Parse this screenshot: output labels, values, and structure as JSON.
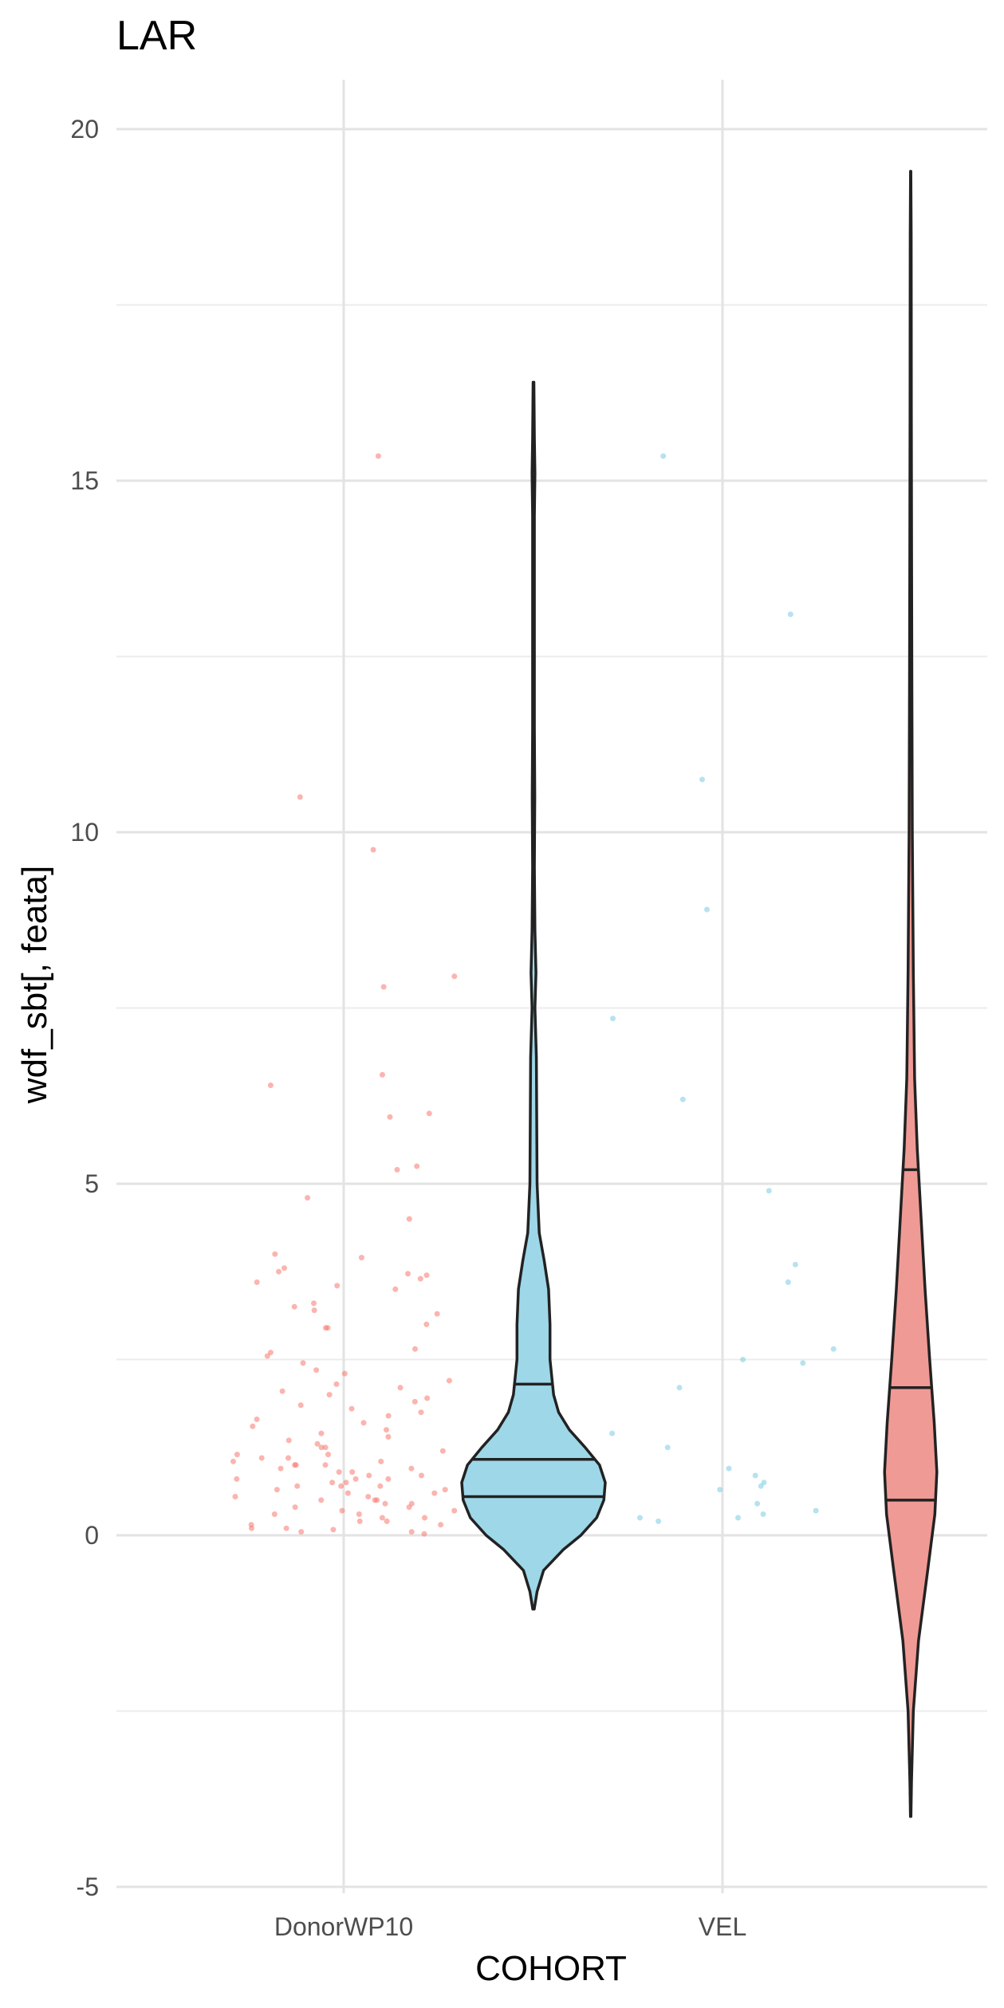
{
  "chart_data": {
    "type": "violin",
    "title": "LAR",
    "xlabel": "COHORT",
    "ylabel": "wdf_sbt[, feata]",
    "categories": [
      "DonorWP10",
      "VEL"
    ],
    "ylim": [
      -5,
      20.5
    ],
    "yticks": [
      -5,
      0,
      5,
      10,
      15,
      20
    ],
    "grid": true,
    "legend": "none",
    "colors": {
      "DonorWP10": "#F8766D",
      "VEL": "#7CCBE3",
      "violin_VEL_fill": "#9ED7E8",
      "violin_DonorWP10_fill": "#F09A95"
    },
    "violins": [
      {
        "group": "VEL",
        "fill": "#9ED7E8",
        "quantiles": [
          0.55,
          1.08,
          2.15
        ],
        "profile": [
          [
            -1.05,
            0.01
          ],
          [
            -0.8,
            0.05
          ],
          [
            -0.5,
            0.14
          ],
          [
            -0.2,
            0.42
          ],
          [
            0.0,
            0.66
          ],
          [
            0.25,
            0.88
          ],
          [
            0.5,
            0.98
          ],
          [
            0.75,
            1.0
          ],
          [
            1.0,
            0.92
          ],
          [
            1.25,
            0.72
          ],
          [
            1.5,
            0.5
          ],
          [
            1.75,
            0.35
          ],
          [
            2.0,
            0.28
          ],
          [
            2.5,
            0.23
          ],
          [
            3.0,
            0.23
          ],
          [
            3.5,
            0.21
          ],
          [
            3.9,
            0.15
          ],
          [
            4.3,
            0.08
          ],
          [
            5.0,
            0.05
          ],
          [
            6.0,
            0.045
          ],
          [
            6.8,
            0.04
          ],
          [
            7.5,
            0.02
          ],
          [
            8.0,
            0.035
          ],
          [
            8.6,
            0.02
          ],
          [
            9.5,
            0.012
          ],
          [
            10.5,
            0.018
          ],
          [
            11.5,
            0.012
          ],
          [
            13.0,
            0.012
          ],
          [
            14.5,
            0.012
          ],
          [
            15.1,
            0.02
          ],
          [
            15.6,
            0.012
          ],
          [
            16.4,
            0.005
          ]
        ]
      },
      {
        "group": "DonorWP10",
        "fill": "#F09A95",
        "quantiles": [
          0.5,
          2.1,
          5.2
        ],
        "profile": [
          [
            -4.0,
            0.004
          ],
          [
            -3.5,
            0.012
          ],
          [
            -2.5,
            0.04
          ],
          [
            -1.5,
            0.12
          ],
          [
            -0.5,
            0.26
          ],
          [
            0.3,
            0.37
          ],
          [
            0.9,
            0.4
          ],
          [
            1.6,
            0.36
          ],
          [
            2.5,
            0.29
          ],
          [
            3.5,
            0.22
          ],
          [
            4.5,
            0.16
          ],
          [
            5.5,
            0.1
          ],
          [
            6.5,
            0.06
          ],
          [
            8.0,
            0.04
          ],
          [
            10.0,
            0.025
          ],
          [
            12.0,
            0.018
          ],
          [
            14.0,
            0.014
          ],
          [
            16.0,
            0.01
          ],
          [
            17.5,
            0.009
          ],
          [
            18.5,
            0.007
          ],
          [
            19.4,
            0.003
          ]
        ]
      }
    ],
    "points": [
      {
        "group": "DonorWP10",
        "color": "#F8766D",
        "y": [
          15.35,
          10.5,
          9.75,
          7.95,
          7.8,
          6.55,
          6.4,
          6.0,
          5.95,
          5.25,
          5.2,
          4.8,
          4.5,
          4.0,
          3.95,
          3.8,
          3.75,
          3.72,
          3.7,
          3.65,
          3.6,
          3.55,
          3.5,
          3.3,
          3.25,
          3.2,
          3.15,
          3.0,
          2.95,
          2.95,
          2.65,
          2.6,
          2.55,
          2.45,
          2.35,
          2.3,
          2.2,
          2.15,
          2.1,
          2.05,
          2.0,
          1.95,
          1.9,
          1.85,
          1.8,
          1.75,
          1.7,
          1.65,
          1.6,
          1.55,
          1.5,
          1.45,
          1.4,
          1.35,
          1.3,
          1.25,
          1.25,
          1.2,
          1.15,
          1.15,
          1.1,
          1.1,
          1.05,
          1.05,
          1.0,
          1.0,
          1.0,
          0.95,
          0.95,
          0.9,
          0.9,
          0.85,
          0.85,
          0.8,
          0.8,
          0.8,
          0.75,
          0.75,
          0.7,
          0.7,
          0.7,
          0.65,
          0.65,
          0.6,
          0.6,
          0.55,
          0.55,
          0.5,
          0.5,
          0.5,
          0.45,
          0.45,
          0.4,
          0.4,
          0.35,
          0.35,
          0.3,
          0.3,
          0.25,
          0.25,
          0.2,
          0.2,
          0.15,
          0.15,
          0.1,
          0.1,
          0.08,
          0.05,
          0.05,
          0.02
        ]
      },
      {
        "group": "VEL",
        "color": "#7CCBE3",
        "y": [
          15.35,
          13.1,
          10.75,
          8.9,
          7.35,
          6.2,
          4.9,
          3.85,
          3.6,
          2.65,
          2.5,
          2.45,
          2.1,
          1.45,
          1.25,
          0.95,
          0.85,
          0.75,
          0.7,
          0.65,
          0.45,
          0.35,
          0.3,
          0.25,
          0.25,
          0.2
        ]
      }
    ]
  }
}
